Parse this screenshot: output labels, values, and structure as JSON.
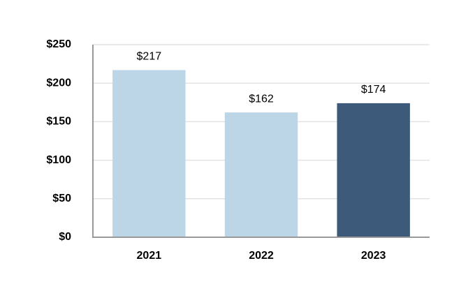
{
  "chart_data": {
    "type": "bar",
    "categories": [
      "2021",
      "2022",
      "2023"
    ],
    "values": [
      217,
      162,
      174
    ],
    "value_labels": [
      "$217",
      "$162",
      "$174"
    ],
    "colors": [
      "#bcd6e8",
      "#bcd6e8",
      "#3d5a7a"
    ],
    "ylim": [
      0,
      250
    ],
    "yticks": [
      {
        "value": 0,
        "label": "$0"
      },
      {
        "value": 50,
        "label": "$50"
      },
      {
        "value": 100,
        "label": "$100"
      },
      {
        "value": 150,
        "label": "$150"
      },
      {
        "value": 200,
        "label": "$200"
      },
      {
        "value": 250,
        "label": "$250"
      }
    ],
    "grid": true
  }
}
